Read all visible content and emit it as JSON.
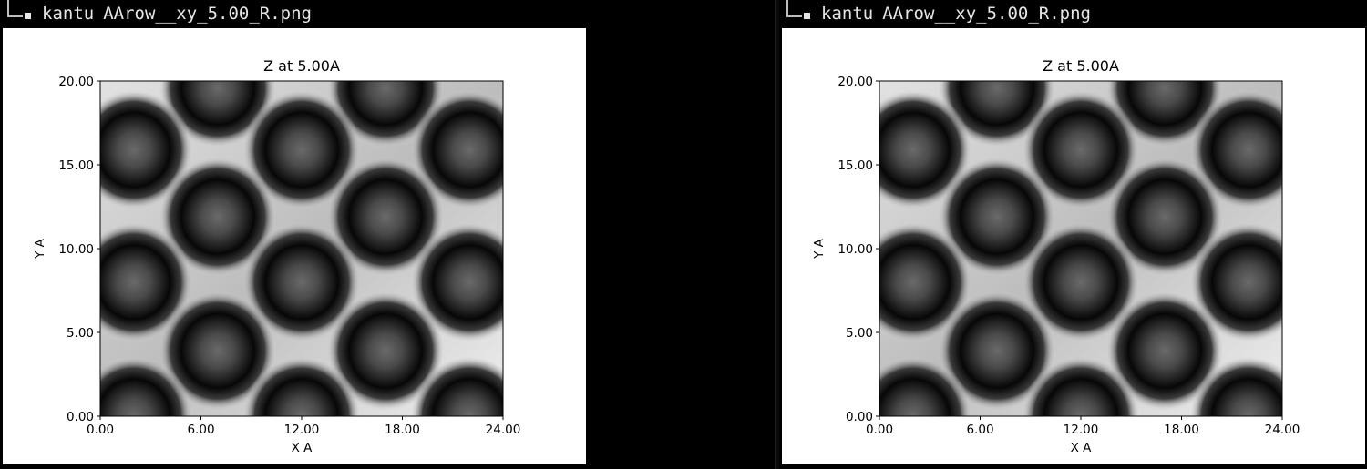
{
  "panes": [
    {
      "command": "kantu",
      "filename": "AArow__xy_5.00_R.png",
      "chart_data": {
        "type": "heatmap",
        "title": "Z at 5.00A",
        "xlabel": "X A",
        "ylabel": "Y A",
        "xlim": [
          0,
          24
        ],
        "ylim": [
          0,
          20
        ],
        "xticks": [
          "0.00",
          "6.00",
          "12.00",
          "18.00",
          "24.00"
        ],
        "yticks": [
          "0.00",
          "5.00",
          "10.00",
          "15.00",
          "20.00"
        ],
        "colormap": "gray",
        "grid": false
      }
    },
    {
      "command": "kantu",
      "filename": "AArow__xy_5.00_R.png",
      "chart_data": {
        "type": "heatmap",
        "title": "Z at 5.00A",
        "xlabel": "X A",
        "ylabel": "Y A",
        "xlim": [
          0,
          24
        ],
        "ylim": [
          0,
          20
        ],
        "xticks": [
          "0.00",
          "6.00",
          "12.00",
          "18.00",
          "24.00"
        ],
        "yticks": [
          "0.00",
          "5.00",
          "10.00",
          "15.00",
          "20.00"
        ],
        "colormap": "gray",
        "grid": false
      }
    }
  ],
  "colors": {
    "terminal_bg": "#000000",
    "terminal_text": "#e6e6e6",
    "figure_bg": "#ffffff"
  }
}
